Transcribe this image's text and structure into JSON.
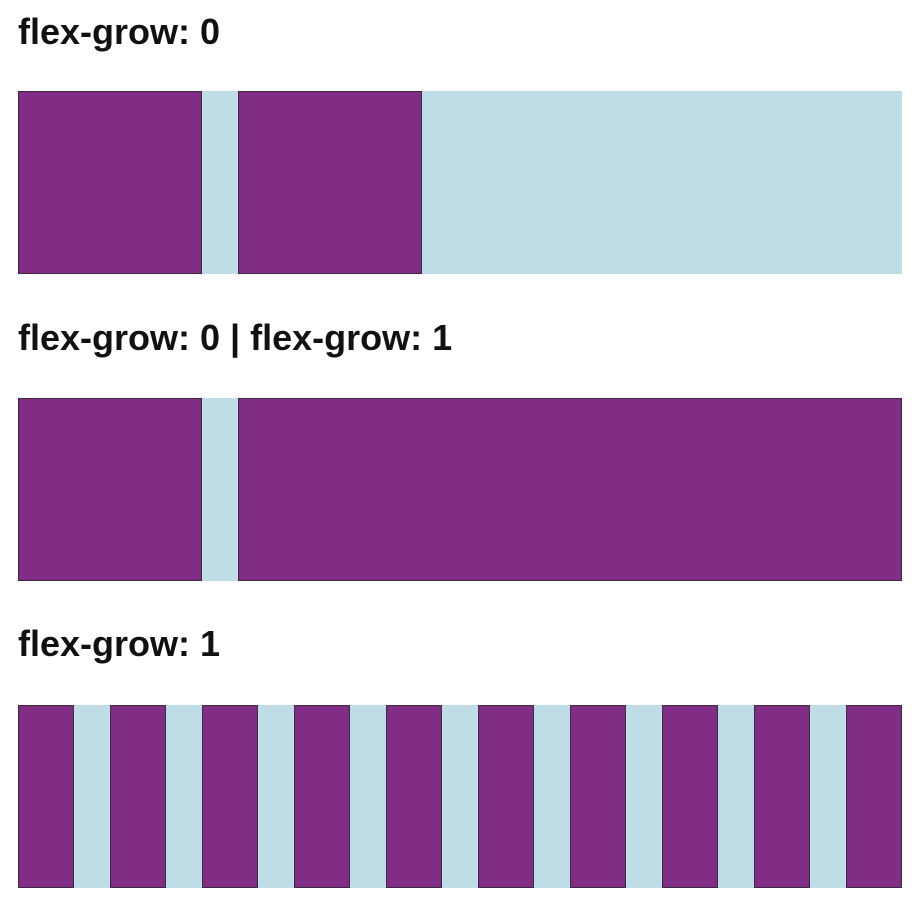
{
  "colors": {
    "container_bg": "#bfdde6",
    "item_bg": "#812d86"
  },
  "sections": [
    {
      "title": "flex-grow: 0",
      "items": [
        {
          "flex_grow": 0
        },
        {
          "flex_grow": 0
        }
      ]
    },
    {
      "title": "flex-grow: 0 | flex-grow: 1",
      "items": [
        {
          "flex_grow": 0
        },
        {
          "flex_grow": 1
        }
      ]
    },
    {
      "title": "flex-grow: 1",
      "items": [
        {
          "flex_grow": 1
        },
        {
          "flex_grow": 1
        },
        {
          "flex_grow": 1
        },
        {
          "flex_grow": 1
        },
        {
          "flex_grow": 1
        },
        {
          "flex_grow": 1
        },
        {
          "flex_grow": 1
        },
        {
          "flex_grow": 1
        },
        {
          "flex_grow": 1
        },
        {
          "flex_grow": 1
        }
      ]
    }
  ]
}
